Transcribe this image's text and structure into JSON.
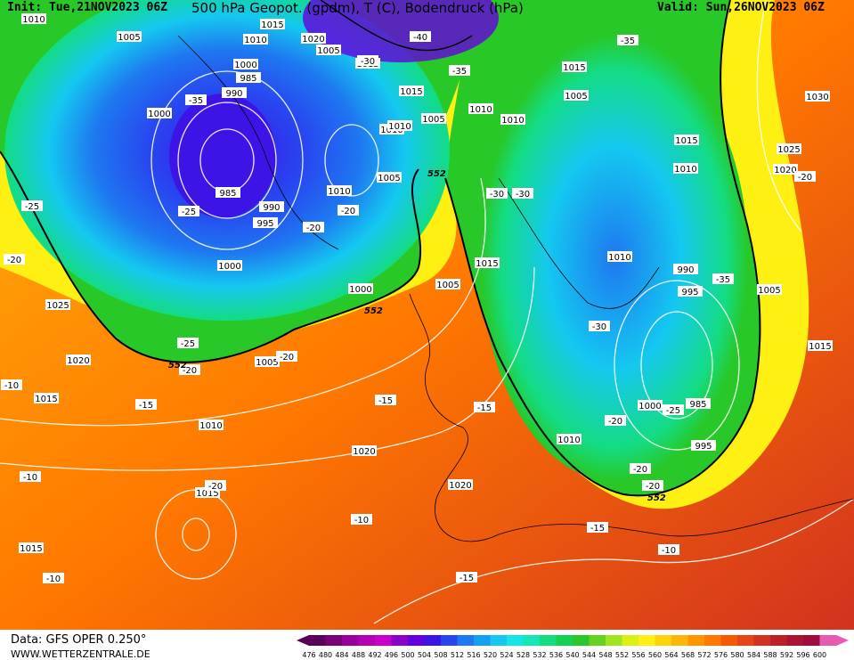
{
  "header": {
    "init": "Init: Tue,21NOV2023 06Z",
    "title": "500 hPa Geopot. (gpdm), T (C), Bodendruck (hPa)",
    "valid": "Valid: Sun,26NOV2023 06Z"
  },
  "footer": {
    "source": "Data: GFS OPER 0.250°",
    "site": "WWW.WETTERZENTRALE.DE"
  },
  "colorbar": {
    "ticks": [
      "476",
      "480",
      "484",
      "488",
      "492",
      "496",
      "500",
      "504",
      "508",
      "512",
      "516",
      "520",
      "524",
      "528",
      "532",
      "536",
      "540",
      "544",
      "548",
      "552",
      "556",
      "560",
      "564",
      "568",
      "572",
      "576",
      "580",
      "584",
      "588",
      "592",
      "596",
      "600"
    ],
    "colors": [
      "#5a005a",
      "#7a007a",
      "#9a009a",
      "#b400b4",
      "#c800c8",
      "#8c00c8",
      "#6400dc",
      "#3c14e6",
      "#2846f0",
      "#1e78f0",
      "#14a0f0",
      "#14c8f0",
      "#14e6e6",
      "#14e6b4",
      "#14dc82",
      "#14d250",
      "#28c828",
      "#64d21e",
      "#a0e61e",
      "#dcf014",
      "#fff014",
      "#ffd20a",
      "#ffb40a",
      "#ff9600",
      "#ff7800",
      "#f55a00",
      "#e64614",
      "#d2321e",
      "#be1e28",
      "#aa1432",
      "#a00a3c",
      "#e65ab4"
    ]
  },
  "map_labels": {
    "isobars": [
      "1010",
      "1015",
      "1020",
      "1005",
      "1010",
      "1000",
      "985",
      "990",
      "1000",
      "985",
      "1005",
      "1015",
      "1010",
      "1010",
      "1015",
      "1010",
      "1005",
      "1005",
      "1010",
      "990",
      "995",
      "1000",
      "1000",
      "1025",
      "1020",
      "1015",
      "1010",
      "1005",
      "1020",
      "1020",
      "1015",
      "1010",
      "1005",
      "1015",
      "1010",
      "1015",
      "1005",
      "1010",
      "1000",
      "985",
      "995",
      "990",
      "995",
      "1005",
      "1015",
      "1020",
      "1030",
      "1025",
      "1020",
      "1010",
      "1015",
      "1015"
    ],
    "temps": [
      "-40",
      "-35",
      "-35",
      "-35",
      "-30",
      "-25",
      "-25",
      "-20",
      "-20",
      "-30",
      "-25",
      "-20",
      "-20",
      "-15",
      "-15",
      "-15",
      "-20",
      "-30",
      "-35",
      "-20",
      "-25",
      "-30",
      "-20",
      "-20",
      "-15",
      "-10",
      "-10",
      "-10",
      "-10",
      "-15",
      "-20",
      "-20",
      "-10"
    ],
    "contour_552": [
      "552",
      "552",
      "552",
      "552"
    ]
  },
  "colors": {
    "background_warm": "#e8781e",
    "trough_blue": "#2846f0",
    "green": "#28c828",
    "yellow": "#fff014"
  }
}
